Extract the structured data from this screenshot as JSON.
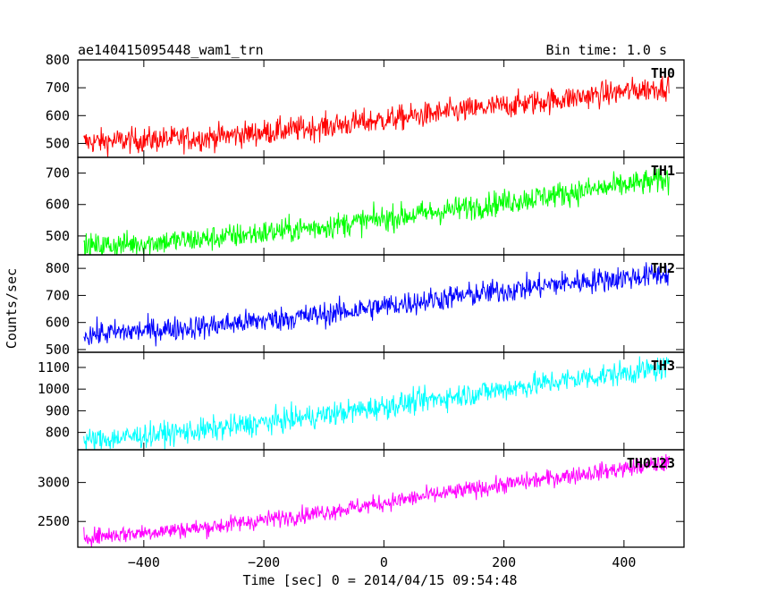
{
  "chart_data": {
    "type": "line",
    "title": "ae140415095448_wam1_trn",
    "subtitle": "Bin time: 1.0 s",
    "xlabel": "Time [sec] 0 = 2014/04/15 09:54:48",
    "ylabel": "Counts/sec",
    "xlim": [
      -510,
      500
    ],
    "x_ticks": [
      -400,
      -200,
      0,
      200,
      400
    ],
    "x_tick_labels": [
      "−400",
      "−200",
      "0",
      "200",
      "400"
    ],
    "data_x_range": [
      -500,
      475
    ],
    "bin_time_sec": 1.0,
    "grid": false,
    "series": [
      {
        "name": "TH0",
        "color": "#ff0000",
        "ylim": [
          450,
          800
        ],
        "y_ticks": [
          500,
          600,
          700,
          800
        ],
        "trend": {
          "x": [
            -500,
            -300,
            -100,
            100,
            300,
            475
          ],
          "y": [
            505,
            520,
            560,
            610,
            660,
            705
          ]
        },
        "noise_amplitude": 45
      },
      {
        "name": "TH1",
        "color": "#00ff00",
        "ylim": [
          440,
          750
        ],
        "y_ticks": [
          500,
          600,
          700
        ],
        "trend": {
          "x": [
            -500,
            -300,
            -100,
            100,
            300,
            475
          ],
          "y": [
            465,
            490,
            530,
            580,
            635,
            680
          ]
        },
        "noise_amplitude": 40
      },
      {
        "name": "TH2",
        "color": "#0000ff",
        "ylim": [
          490,
          850
        ],
        "y_ticks": [
          500,
          600,
          700,
          800
        ],
        "trend": {
          "x": [
            -500,
            -300,
            -100,
            100,
            300,
            475
          ],
          "y": [
            555,
            585,
            630,
            690,
            745,
            780
          ]
        },
        "noise_amplitude": 45
      },
      {
        "name": "TH3",
        "color": "#00ffff",
        "ylim": [
          720,
          1170
        ],
        "y_ticks": [
          800,
          900,
          1000,
          1100
        ],
        "trend": {
          "x": [
            -500,
            -300,
            -100,
            100,
            300,
            475
          ],
          "y": [
            760,
            810,
            880,
            960,
            1040,
            1100
          ]
        },
        "noise_amplitude": 55
      },
      {
        "name": "TH0123",
        "color": "#ff00ff",
        "ylim": [
          2170,
          3420
        ],
        "y_ticks": [
          2500,
          3000
        ],
        "trend": {
          "x": [
            -500,
            -300,
            -100,
            100,
            300,
            475
          ],
          "y": [
            2300,
            2420,
            2620,
            2860,
            3080,
            3250
          ]
        },
        "noise_amplitude": 110
      }
    ]
  }
}
